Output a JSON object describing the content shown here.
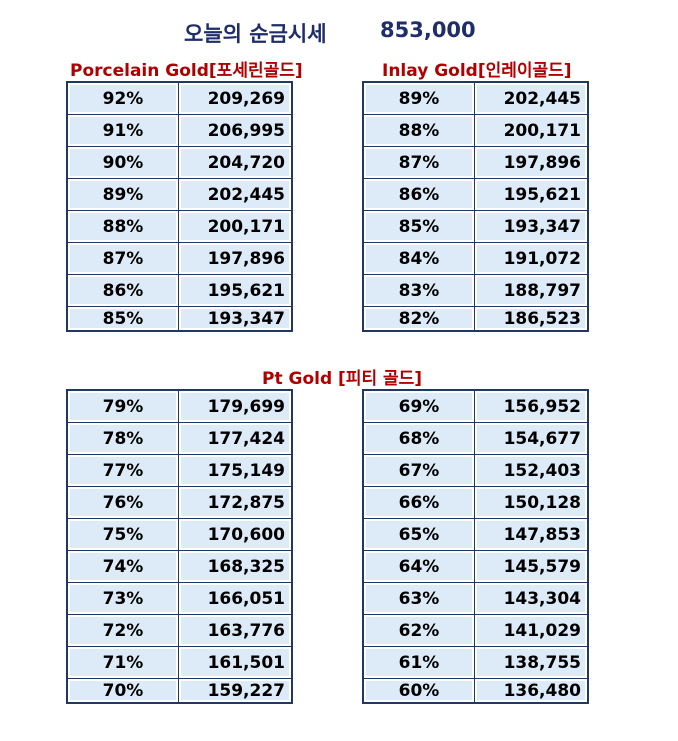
{
  "header": {
    "title": "오늘의 순금시세",
    "price": "853,000"
  },
  "porcelain": {
    "heading": "Porcelain Gold[포세린골드]",
    "rows": [
      {
        "pct": "92%",
        "value": "209,269"
      },
      {
        "pct": "91%",
        "value": "206,995"
      },
      {
        "pct": "90%",
        "value": "204,720"
      },
      {
        "pct": "89%",
        "value": "202,445"
      },
      {
        "pct": "88%",
        "value": "200,171"
      },
      {
        "pct": "87%",
        "value": "197,896"
      },
      {
        "pct": "86%",
        "value": "195,621"
      },
      {
        "pct": "85%",
        "value": "193,347"
      }
    ]
  },
  "inlay": {
    "heading": "Inlay Gold[인레이골드]",
    "rows": [
      {
        "pct": "89%",
        "value": "202,445"
      },
      {
        "pct": "88%",
        "value": "200,171"
      },
      {
        "pct": "87%",
        "value": "197,896"
      },
      {
        "pct": "86%",
        "value": "195,621"
      },
      {
        "pct": "85%",
        "value": "193,347"
      },
      {
        "pct": "84%",
        "value": "191,072"
      },
      {
        "pct": "83%",
        "value": "188,797"
      },
      {
        "pct": "82%",
        "value": "186,523"
      }
    ]
  },
  "pt": {
    "heading": "Pt Gold [피티 골드]",
    "left_rows": [
      {
        "pct": "79%",
        "value": "179,699"
      },
      {
        "pct": "78%",
        "value": "177,424"
      },
      {
        "pct": "77%",
        "value": "175,149"
      },
      {
        "pct": "76%",
        "value": "172,875"
      },
      {
        "pct": "75%",
        "value": "170,600"
      },
      {
        "pct": "74%",
        "value": "168,325"
      },
      {
        "pct": "73%",
        "value": "166,051"
      },
      {
        "pct": "72%",
        "value": "163,776"
      },
      {
        "pct": "71%",
        "value": "161,501"
      },
      {
        "pct": "70%",
        "value": "159,227"
      }
    ],
    "right_rows": [
      {
        "pct": "69%",
        "value": "156,952"
      },
      {
        "pct": "68%",
        "value": "154,677"
      },
      {
        "pct": "67%",
        "value": "152,403"
      },
      {
        "pct": "66%",
        "value": "150,128"
      },
      {
        "pct": "65%",
        "value": "147,853"
      },
      {
        "pct": "64%",
        "value": "145,579"
      },
      {
        "pct": "63%",
        "value": "143,304"
      },
      {
        "pct": "62%",
        "value": "141,029"
      },
      {
        "pct": "61%",
        "value": "138,755"
      },
      {
        "pct": "60%",
        "value": "136,480"
      }
    ]
  },
  "colors": {
    "title": "#1f2d6b",
    "heading": "#b00000",
    "cell_bg": "#dcebf7",
    "border": "#1f3864"
  }
}
